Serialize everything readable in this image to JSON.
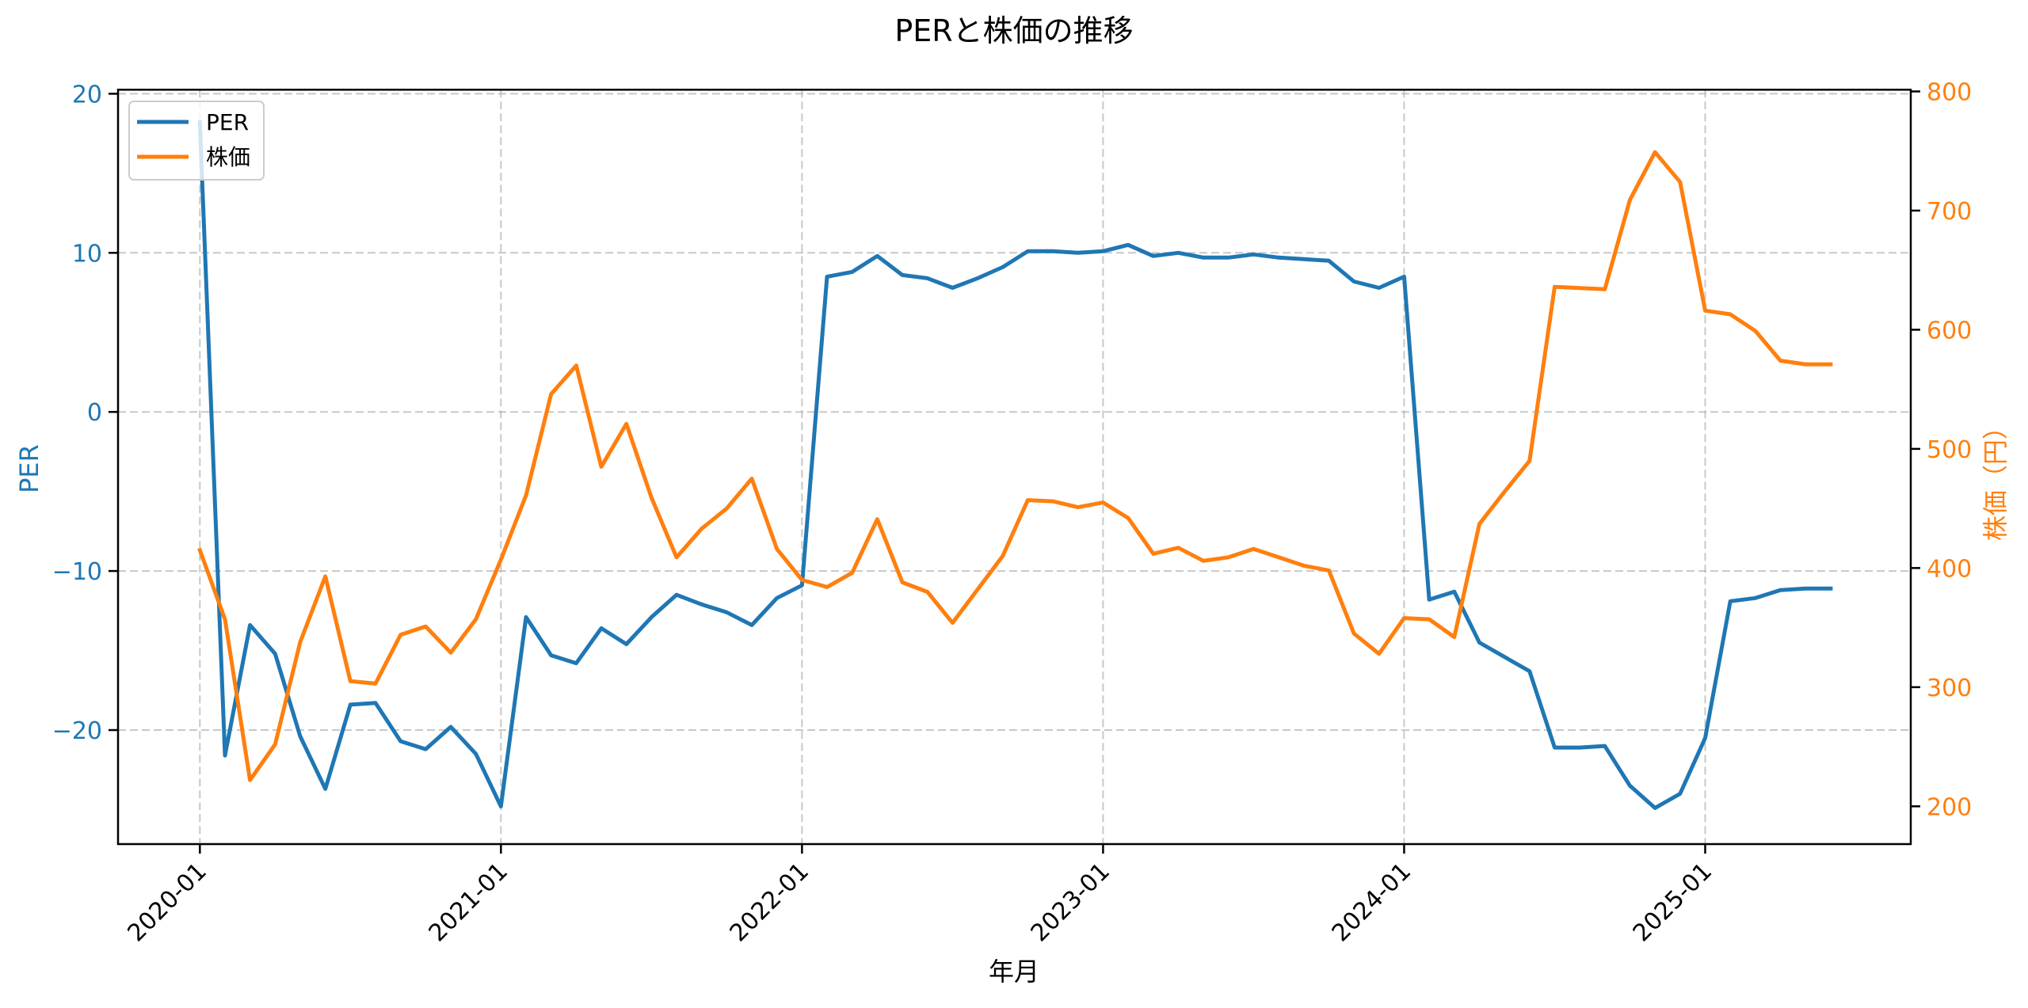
{
  "title": "PERと株価の推移",
  "x_axis": {
    "label": "年月",
    "ticks": [
      "2020-01",
      "2021-01",
      "2022-01",
      "2023-01",
      "2024-01",
      "2025-01"
    ]
  },
  "left_axis": {
    "label": "PER",
    "ticks": [
      "20",
      "10",
      "0",
      "−10",
      "−20"
    ],
    "tick_values": [
      20,
      10,
      0,
      -10,
      -20
    ],
    "color": "#1f77b4"
  },
  "right_axis": {
    "label": "株価（円）",
    "ticks": [
      "800",
      "700",
      "600",
      "500",
      "400",
      "300",
      "200"
    ],
    "tick_values": [
      800,
      700,
      600,
      500,
      400,
      300,
      200
    ],
    "color": "#ff7f0e"
  },
  "legend": {
    "items": [
      {
        "label": "PER",
        "color": "#1f77b4"
      },
      {
        "label": "株価",
        "color": "#ff7f0e"
      }
    ]
  },
  "chart_data": {
    "type": "line",
    "title": "PERと株価の推移",
    "xlabel": "年月",
    "ylabel": "PER",
    "ylabel_right": "株価（円）",
    "ylim": [
      -27.2,
      20.3
    ],
    "ylim_right": [
      168,
      801
    ],
    "grid": true,
    "legend_position": "upper left",
    "x": [
      "2020-01",
      "2020-02",
      "2020-03",
      "2020-04",
      "2020-05",
      "2020-06",
      "2020-07",
      "2020-08",
      "2020-09",
      "2020-10",
      "2020-11",
      "2020-12",
      "2021-01",
      "2021-02",
      "2021-03",
      "2021-04",
      "2021-05",
      "2021-06",
      "2021-07",
      "2021-08",
      "2021-09",
      "2021-10",
      "2021-11",
      "2021-12",
      "2022-01",
      "2022-02",
      "2022-03",
      "2022-04",
      "2022-05",
      "2022-06",
      "2022-07",
      "2022-08",
      "2022-09",
      "2022-10",
      "2022-11",
      "2022-12",
      "2023-01",
      "2023-02",
      "2023-03",
      "2023-04",
      "2023-05",
      "2023-06",
      "2023-07",
      "2023-08",
      "2023-09",
      "2023-10",
      "2023-11",
      "2023-12",
      "2024-01",
      "2024-02",
      "2024-03",
      "2024-04",
      "2024-05",
      "2024-06",
      "2024-07",
      "2024-08",
      "2024-09",
      "2024-10",
      "2024-11",
      "2024-12",
      "2025-01",
      "2025-02",
      "2025-03",
      "2025-04",
      "2025-05",
      "2025-06"
    ],
    "series": [
      {
        "name": "PER",
        "axis": "left",
        "color": "#1f77b4",
        "values": [
          18.2,
          -21.6,
          -13.4,
          -15.2,
          -20.4,
          -23.7,
          -18.4,
          -18.3,
          -20.7,
          -21.2,
          -19.8,
          -21.5,
          -24.8,
          -12.9,
          -15.3,
          -15.8,
          -13.6,
          -14.6,
          -12.9,
          -11.5,
          -12.1,
          -12.6,
          -13.4,
          -11.7,
          -10.9,
          8.5,
          8.8,
          9.8,
          8.6,
          8.4,
          7.8,
          8.4,
          9.1,
          10.1,
          10.1,
          10.0,
          10.1,
          10.5,
          9.8,
          10.0,
          9.7,
          9.7,
          9.9,
          9.7,
          9.6,
          9.5,
          8.2,
          7.8,
          8.5,
          -11.8,
          -11.3,
          -14.5,
          -15.4,
          -16.3,
          -21.1,
          -21.1,
          -21.0,
          -23.5,
          -24.9,
          -24.0,
          -20.5,
          -11.9,
          -11.7,
          -11.2,
          -11.1,
          -11.1
        ]
      },
      {
        "name": "株価",
        "axis": "right",
        "color": "#ff7f0e",
        "values": [
          415,
          357,
          222,
          252,
          338,
          393,
          305,
          303,
          344,
          351,
          329,
          357,
          407,
          461,
          546,
          570,
          485,
          521,
          459,
          409,
          433,
          450,
          475,
          416,
          390,
          384,
          396,
          441,
          388,
          380,
          354,
          382,
          410,
          457,
          456,
          451,
          455,
          442,
          412,
          417,
          406,
          409,
          416,
          409,
          402,
          398,
          345,
          328,
          358,
          357,
          342,
          437,
          464,
          490,
          636,
          635,
          634,
          709,
          749,
          724,
          616,
          613,
          599,
          574,
          571,
          571
        ]
      }
    ]
  }
}
